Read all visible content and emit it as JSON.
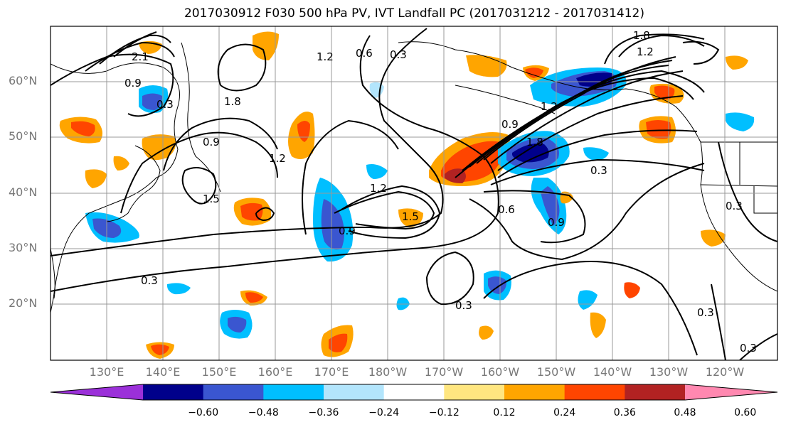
{
  "title": "2017030912 F030 500 hPa PV, IVT Landfall PC (2017031212 - 2017031412)",
  "lat_labels": [
    "60°N",
    "50°N",
    "40°N",
    "30°N",
    "20°N"
  ],
  "lon_labels": [
    "130°E",
    "140°E",
    "150°E",
    "160°E",
    "170°E",
    "180°W",
    "170°W",
    "160°W",
    "150°W",
    "140°W",
    "130°W",
    "120°W"
  ],
  "colorbar": {
    "colors": [
      "#9b30d9",
      "#00008b",
      "#3a56d0",
      "#00bfff",
      "#b3e5fc",
      "#ffffff",
      "#ffe680",
      "#ffa500",
      "#ff4500",
      "#b22222",
      "#ff88b0"
    ],
    "tick_labels": [
      "−0.60",
      "−0.48",
      "−0.36",
      "−0.24",
      "−0.12",
      "0.12",
      "0.24",
      "0.36",
      "0.48",
      "0.60"
    ]
  },
  "contour_labels": [
    "0.3",
    "0.6",
    "0.9",
    "1.2",
    "1.5",
    "1.8",
    "2.1"
  ]
}
